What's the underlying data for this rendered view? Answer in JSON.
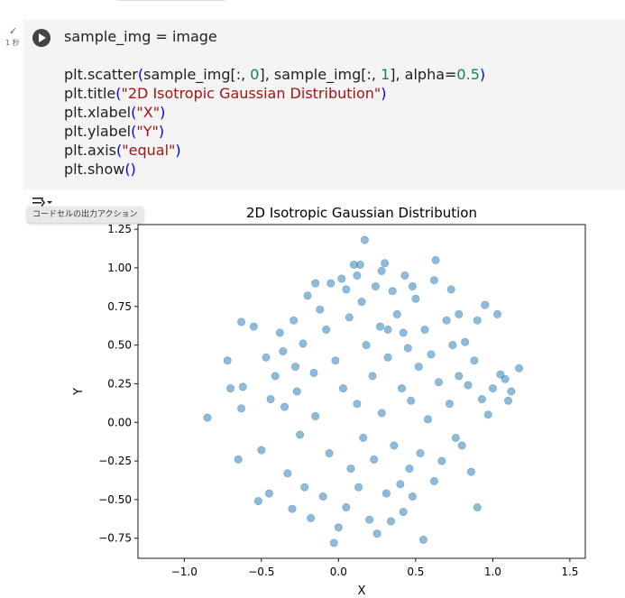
{
  "cell": {
    "status_icon": "check-icon",
    "exec_time": "1 秒",
    "code_lines": [
      [
        {
          "t": "sample_img = image",
          "c": ""
        }
      ],
      [
        {
          "t": "",
          "c": ""
        }
      ],
      [
        {
          "t": "plt.scatter",
          "c": ""
        },
        {
          "t": "(",
          "c": "b"
        },
        {
          "t": "sample_img[:, ",
          "c": ""
        },
        {
          "t": "0",
          "c": "n"
        },
        {
          "t": "], sample_img[:, ",
          "c": ""
        },
        {
          "t": "1",
          "c": "n"
        },
        {
          "t": "], alpha=",
          "c": ""
        },
        {
          "t": "0.5",
          "c": "n"
        },
        {
          "t": ")",
          "c": "b"
        }
      ],
      [
        {
          "t": "plt.title",
          "c": ""
        },
        {
          "t": "(",
          "c": "b"
        },
        {
          "t": "\"2D Isotropic Gaussian Distribution\"",
          "c": "s"
        },
        {
          "t": ")",
          "c": "b"
        }
      ],
      [
        {
          "t": "plt.xlabel",
          "c": ""
        },
        {
          "t": "(",
          "c": "b"
        },
        {
          "t": "\"X\"",
          "c": "s"
        },
        {
          "t": ")",
          "c": "b"
        }
      ],
      [
        {
          "t": "plt.ylabel",
          "c": ""
        },
        {
          "t": "(",
          "c": "b"
        },
        {
          "t": "\"Y\"",
          "c": "s"
        },
        {
          "t": ")",
          "c": "b"
        }
      ],
      [
        {
          "t": "plt.axis",
          "c": ""
        },
        {
          "t": "(",
          "c": "b"
        },
        {
          "t": "\"equal\"",
          "c": "s"
        },
        {
          "t": ")",
          "c": "b"
        }
      ],
      [
        {
          "t": "plt.show",
          "c": ""
        },
        {
          "t": "()",
          "c": "b"
        }
      ]
    ]
  },
  "output": {
    "action_icon": "output-actions-icon",
    "tooltip": "コードセルの出力アクション"
  },
  "chart_data": {
    "type": "scatter",
    "title": "2D Isotropic Gaussian Distribution",
    "xlabel": "X",
    "ylabel": "Y",
    "xlim": [
      -1.3,
      1.6
    ],
    "ylim": [
      -0.88,
      1.28
    ],
    "xticks": [
      "−1.0",
      "−0.5",
      "0.0",
      "0.5",
      "1.0",
      "1.5"
    ],
    "xtick_values": [
      -1.0,
      -0.5,
      0.0,
      0.5,
      1.0,
      1.5
    ],
    "yticks": [
      "−0.75",
      "−0.50",
      "−0.25",
      "0.00",
      "0.25",
      "0.50",
      "0.75",
      "1.00",
      "1.25"
    ],
    "ytick_values": [
      -0.75,
      -0.5,
      -0.25,
      0.0,
      0.25,
      0.5,
      0.75,
      1.0,
      1.25
    ],
    "alpha": 0.5,
    "color": "#1f77b4",
    "grid": false,
    "points": [
      [
        -0.85,
        0.03
      ],
      [
        -0.72,
        0.4
      ],
      [
        -0.7,
        0.22
      ],
      [
        -0.63,
        0.65
      ],
      [
        -0.63,
        0.09
      ],
      [
        -0.65,
        -0.24
      ],
      [
        -0.62,
        0.23
      ],
      [
        -0.55,
        0.62
      ],
      [
        -0.52,
        -0.51
      ],
      [
        -0.5,
        -0.18
      ],
      [
        -0.45,
        -0.46
      ],
      [
        -0.47,
        0.42
      ],
      [
        -0.44,
        0.15
      ],
      [
        -0.41,
        0.3
      ],
      [
        -0.38,
        0.58
      ],
      [
        -0.36,
        0.46
      ],
      [
        -0.35,
        0.1
      ],
      [
        -0.33,
        -0.33
      ],
      [
        -0.3,
        -0.56
      ],
      [
        -0.29,
        0.66
      ],
      [
        -0.28,
        0.36
      ],
      [
        -0.27,
        0.2
      ],
      [
        -0.25,
        -0.08
      ],
      [
        -0.23,
        0.51
      ],
      [
        -0.22,
        -0.42
      ],
      [
        -0.2,
        0.82
      ],
      [
        -0.18,
        -0.62
      ],
      [
        -0.16,
        0.32
      ],
      [
        -0.15,
        0.04
      ],
      [
        -0.12,
        0.73
      ],
      [
        -0.1,
        -0.48
      ],
      [
        -0.08,
        0.6
      ],
      [
        -0.06,
        -0.2
      ],
      [
        -0.05,
        0.9
      ],
      [
        -0.03,
        -0.78
      ],
      [
        -0.02,
        0.4
      ],
      [
        0.0,
        -0.68
      ],
      [
        0.02,
        0.93
      ],
      [
        0.03,
        0.22
      ],
      [
        0.05,
        -0.55
      ],
      [
        0.07,
        0.68
      ],
      [
        0.08,
        -0.3
      ],
      [
        0.1,
        1.02
      ],
      [
        0.12,
        0.12
      ],
      [
        0.13,
        -0.42
      ],
      [
        0.15,
        0.78
      ],
      [
        0.16,
        -0.1
      ],
      [
        0.17,
        1.18
      ],
      [
        0.18,
        0.5
      ],
      [
        0.2,
        -0.63
      ],
      [
        0.22,
        0.3
      ],
      [
        0.23,
        -0.24
      ],
      [
        0.24,
        0.88
      ],
      [
        0.25,
        -0.72
      ],
      [
        0.27,
        0.62
      ],
      [
        0.28,
        0.06
      ],
      [
        0.3,
        1.03
      ],
      [
        0.31,
        -0.46
      ],
      [
        0.32,
        0.42
      ],
      [
        0.34,
        -0.64
      ],
      [
        0.35,
        0.85
      ],
      [
        0.36,
        -0.15
      ],
      [
        0.38,
        0.7
      ],
      [
        0.4,
        -0.4
      ],
      [
        0.41,
        0.22
      ],
      [
        0.42,
        -0.58
      ],
      [
        0.43,
        0.95
      ],
      [
        0.45,
        0.48
      ],
      [
        0.46,
        -0.3
      ],
      [
        0.47,
        0.14
      ],
      [
        0.48,
        -0.48
      ],
      [
        0.5,
        0.8
      ],
      [
        0.52,
        0.36
      ],
      [
        0.53,
        -0.2
      ],
      [
        0.55,
        -0.76
      ],
      [
        0.56,
        0.6
      ],
      [
        0.58,
        0.02
      ],
      [
        0.6,
        0.44
      ],
      [
        0.62,
        -0.38
      ],
      [
        0.63,
        1.05
      ],
      [
        0.65,
        0.26
      ],
      [
        0.67,
        -0.25
      ],
      [
        0.7,
        0.66
      ],
      [
        0.72,
        0.12
      ],
      [
        0.74,
        0.5
      ],
      [
        0.76,
        -0.1
      ],
      [
        0.78,
        0.3
      ],
      [
        0.8,
        -0.15
      ],
      [
        0.82,
        0.52
      ],
      [
        0.84,
        0.24
      ],
      [
        0.86,
        -0.32
      ],
      [
        0.88,
        0.4
      ],
      [
        0.9,
        -0.55
      ],
      [
        0.93,
        0.15
      ],
      [
        0.95,
        0.76
      ],
      [
        0.97,
        0.05
      ],
      [
        1.0,
        0.22
      ],
      [
        1.03,
        0.7
      ],
      [
        1.05,
        0.31
      ],
      [
        1.08,
        0.28
      ],
      [
        1.1,
        0.14
      ],
      [
        1.12,
        0.2
      ],
      [
        1.17,
        0.35
      ],
      [
        -0.15,
        0.9
      ],
      [
        0.05,
        0.86
      ],
      [
        0.12,
        0.95
      ],
      [
        0.14,
        1.02
      ],
      [
        0.28,
        0.98
      ],
      [
        0.32,
        0.6
      ],
      [
        0.42,
        0.58
      ],
      [
        0.48,
        0.88
      ],
      [
        0.62,
        0.92
      ],
      [
        0.73,
        0.86
      ],
      [
        0.78,
        0.7
      ],
      [
        0.9,
        0.66
      ]
    ]
  }
}
